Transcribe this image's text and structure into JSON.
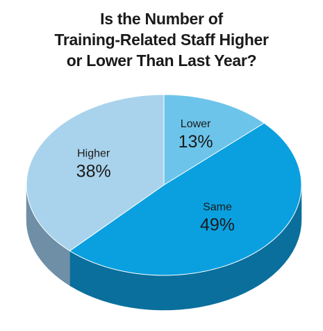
{
  "chart_data": {
    "type": "pie",
    "title_lines": [
      "Is the Number of",
      "Training-Related Staff Higher",
      "or Lower Than Last Year?"
    ],
    "slices": [
      {
        "name": "Lower",
        "value": 13,
        "label": "13%",
        "color": "#6cc4ea",
        "side_color": "#3f8fb3"
      },
      {
        "name": "Same",
        "value": 49,
        "label": "49%",
        "color": "#0aa0e0",
        "side_color": "#0a6f9c"
      },
      {
        "name": "Higher",
        "value": 38,
        "label": "38%",
        "color": "#a9d3ec",
        "side_color": "#6e8fa6"
      }
    ],
    "start": "top, clockwise",
    "style": "3d"
  }
}
